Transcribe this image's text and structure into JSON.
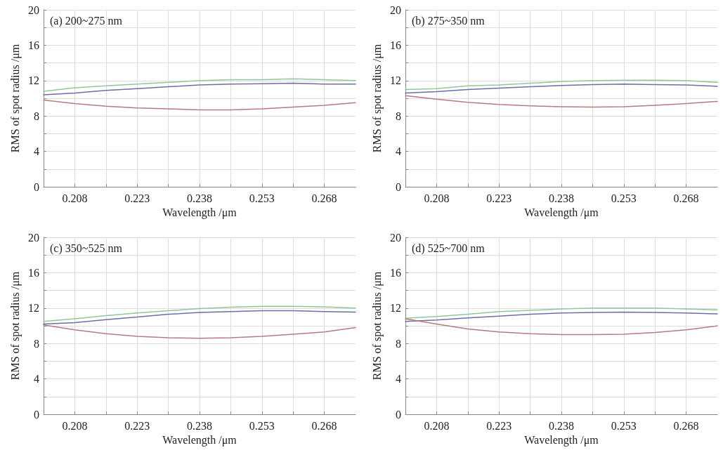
{
  "chart_data": [
    {
      "type": "line",
      "title": "(a) 200~275 nm",
      "xlabel": "Wavelength /μm",
      "ylabel": "RMS of spot radius /μm",
      "x": [
        0.2005,
        0.208,
        0.2155,
        0.223,
        0.2305,
        0.238,
        0.2455,
        0.253,
        0.2605,
        0.268,
        0.2755
      ],
      "series": [
        {
          "color": "#8cc99a",
          "values": [
            10.8,
            11.2,
            11.4,
            11.6,
            11.8,
            12.0,
            12.1,
            12.1,
            12.2,
            12.1,
            12.0
          ]
        },
        {
          "color": "#6b6fa8",
          "values": [
            10.4,
            10.6,
            10.9,
            11.1,
            11.3,
            11.5,
            11.6,
            11.65,
            11.7,
            11.6,
            11.6
          ]
        },
        {
          "color": "#b97a7a",
          "values": [
            9.8,
            9.4,
            9.1,
            8.9,
            8.8,
            8.7,
            8.7,
            8.8,
            9.0,
            9.2,
            9.5
          ]
        }
      ],
      "xlim": [
        0.2005,
        0.2755
      ],
      "xticks": [
        0.208,
        {
          "value": 0.2155,
          "label": null
        },
        0.223,
        {
          "value": 0.2305,
          "label": null
        },
        0.238,
        {
          "value": 0.2455,
          "label": null
        },
        0.253,
        {
          "value": 0.2605,
          "label": null
        },
        0.268
      ],
      "ylim": [
        0,
        20
      ],
      "yticks": [
        0,
        {
          "value": 2,
          "label": null
        },
        4,
        {
          "value": 6,
          "label": null
        },
        8,
        {
          "value": 10,
          "label": null
        },
        12,
        {
          "value": 14,
          "label": null
        },
        16,
        {
          "value": 18,
          "label": null
        },
        20
      ],
      "grid": true,
      "marker": "none",
      "line_style": "solid"
    },
    {
      "type": "line",
      "title": "(b) 275~350 nm",
      "xlabel": "Wavelength /μm",
      "ylabel": "RMS of spot radius /μm",
      "x": [
        0.2005,
        0.208,
        0.2155,
        0.223,
        0.2305,
        0.238,
        0.2455,
        0.253,
        0.2605,
        0.268,
        0.2755
      ],
      "series": [
        {
          "color": "#8cc99a",
          "values": [
            11.0,
            11.1,
            11.4,
            11.5,
            11.7,
            11.9,
            12.0,
            12.05,
            12.05,
            12.0,
            11.8
          ]
        },
        {
          "color": "#6b6fa8",
          "values": [
            10.6,
            10.75,
            11.0,
            11.15,
            11.3,
            11.45,
            11.55,
            11.6,
            11.55,
            11.5,
            11.35
          ]
        },
        {
          "color": "#b97a7a",
          "values": [
            10.3,
            9.9,
            9.55,
            9.3,
            9.15,
            9.05,
            9.0,
            9.05,
            9.2,
            9.4,
            9.65
          ]
        }
      ],
      "xlim": [
        0.2005,
        0.2755
      ],
      "xticks": [
        0.208,
        {
          "value": 0.2155,
          "label": null
        },
        0.223,
        {
          "value": 0.2305,
          "label": null
        },
        0.238,
        {
          "value": 0.2455,
          "label": null
        },
        0.253,
        {
          "value": 0.2605,
          "label": null
        },
        0.268
      ],
      "ylim": [
        0,
        20
      ],
      "yticks": [
        0,
        {
          "value": 2,
          "label": null
        },
        4,
        {
          "value": 6,
          "label": null
        },
        8,
        {
          "value": 10,
          "label": null
        },
        12,
        {
          "value": 14,
          "label": null
        },
        16,
        {
          "value": 18,
          "label": null
        },
        20
      ],
      "grid": true,
      "marker": "none",
      "line_style": "solid"
    },
    {
      "type": "line",
      "title": "(c) 350~525 nm",
      "xlabel": "Wavelength /μm",
      "ylabel": "RMS of spot radius /μm",
      "x": [
        0.2005,
        0.208,
        0.2155,
        0.223,
        0.2305,
        0.238,
        0.2455,
        0.253,
        0.2605,
        0.268,
        0.2755
      ],
      "series": [
        {
          "color": "#8cc99a",
          "values": [
            10.5,
            10.8,
            11.15,
            11.45,
            11.7,
            11.95,
            12.1,
            12.2,
            12.2,
            12.15,
            12.0
          ]
        },
        {
          "color": "#6b6fa8",
          "values": [
            10.2,
            10.35,
            10.7,
            11.0,
            11.3,
            11.5,
            11.6,
            11.7,
            11.7,
            11.6,
            11.55
          ]
        },
        {
          "color": "#b97a7a",
          "values": [
            10.1,
            9.55,
            9.1,
            8.8,
            8.65,
            8.6,
            8.65,
            8.8,
            9.05,
            9.3,
            9.8
          ]
        }
      ],
      "xlim": [
        0.2005,
        0.2755
      ],
      "xticks": [
        0.208,
        {
          "value": 0.2155,
          "label": null
        },
        0.223,
        {
          "value": 0.2305,
          "label": null
        },
        0.238,
        {
          "value": 0.2455,
          "label": null
        },
        0.253,
        {
          "value": 0.2605,
          "label": null
        },
        0.268
      ],
      "ylim": [
        0,
        20
      ],
      "yticks": [
        0,
        {
          "value": 2,
          "label": null
        },
        4,
        {
          "value": 6,
          "label": null
        },
        8,
        {
          "value": 10,
          "label": null
        },
        12,
        {
          "value": 14,
          "label": null
        },
        16,
        {
          "value": 18,
          "label": null
        },
        20
      ],
      "grid": true,
      "marker": "none",
      "line_style": "solid"
    },
    {
      "type": "line",
      "title": "(d) 525~700 nm",
      "xlabel": "Wavelength /μm",
      "ylabel": "RMS of spot radius /μm",
      "x": [
        0.2005,
        0.208,
        0.2155,
        0.223,
        0.2305,
        0.238,
        0.2455,
        0.253,
        0.2605,
        0.268,
        0.2755
      ],
      "series": [
        {
          "color": "#8cc99a",
          "values": [
            10.85,
            11.05,
            11.3,
            11.6,
            11.75,
            11.9,
            12.0,
            12.0,
            12.0,
            11.9,
            11.8
          ]
        },
        {
          "color": "#6b6fa8",
          "values": [
            10.5,
            10.65,
            10.9,
            11.1,
            11.3,
            11.45,
            11.5,
            11.55,
            11.5,
            11.45,
            11.35
          ]
        },
        {
          "color": "#b97a7a",
          "values": [
            10.8,
            10.2,
            9.65,
            9.3,
            9.1,
            9.0,
            9.0,
            9.05,
            9.25,
            9.55,
            10.0
          ]
        }
      ],
      "xlim": [
        0.2005,
        0.2755
      ],
      "xticks": [
        0.208,
        {
          "value": 0.2155,
          "label": null
        },
        0.223,
        {
          "value": 0.2305,
          "label": null
        },
        0.238,
        {
          "value": 0.2455,
          "label": null
        },
        0.253,
        {
          "value": 0.2605,
          "label": null
        },
        0.268
      ],
      "ylim": [
        0,
        20
      ],
      "yticks": [
        0,
        {
          "value": 2,
          "label": null
        },
        4,
        {
          "value": 6,
          "label": null
        },
        8,
        {
          "value": 10,
          "label": null
        },
        12,
        {
          "value": 14,
          "label": null
        },
        16,
        {
          "value": 18,
          "label": null
        },
        20
      ],
      "grid": true,
      "marker": "none",
      "line_style": "solid"
    }
  ]
}
